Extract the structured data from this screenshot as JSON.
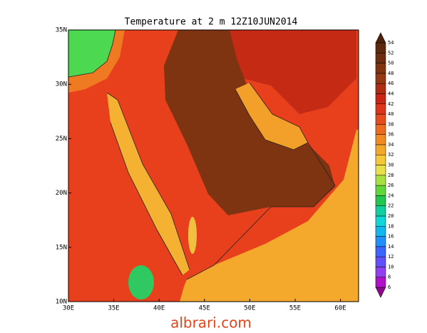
{
  "title": "Temperature at 2 m 12Z10JUN2014",
  "map": {
    "xlim": [
      30,
      62
    ],
    "ylim": [
      10,
      35
    ],
    "xticks": [
      {
        "value": 30,
        "label": "30E"
      },
      {
        "value": 35,
        "label": "35E"
      },
      {
        "value": 40,
        "label": "40E"
      },
      {
        "value": 45,
        "label": "45E"
      },
      {
        "value": 50,
        "label": "50E"
      },
      {
        "value": 55,
        "label": "55E"
      },
      {
        "value": 60,
        "label": "60E"
      }
    ],
    "yticks": [
      {
        "value": 10,
        "label": "10N"
      },
      {
        "value": 15,
        "label": "15N"
      },
      {
        "value": 20,
        "label": "20N"
      },
      {
        "value": 25,
        "label": "25N"
      },
      {
        "value": 30,
        "label": "30N"
      },
      {
        "value": 35,
        "label": "35N"
      }
    ],
    "colorbar": {
      "levels": [
        6,
        8,
        10,
        12,
        14,
        16,
        18,
        20,
        22,
        24,
        26,
        28,
        30,
        32,
        34,
        36,
        38,
        40,
        42,
        44,
        46,
        48,
        50,
        52,
        54
      ],
      "colors": [
        "#8a0a8a",
        "#b010c8",
        "#9040f0",
        "#6050ff",
        "#3c64ff",
        "#2090ff",
        "#10b8f0",
        "#10d8d8",
        "#10d0a0",
        "#20c850",
        "#60d838",
        "#a8e040",
        "#e8e048",
        "#f5c838",
        "#f5a828",
        "#f28a22",
        "#ee6a1e",
        "#e84c1c",
        "#e0341a",
        "#cc2414",
        "#b02c12",
        "#963812",
        "#803410",
        "#6e2e10",
        "#5e2a0e",
        "#4c220a"
      ]
    }
  },
  "watermark": "albrari.com"
}
